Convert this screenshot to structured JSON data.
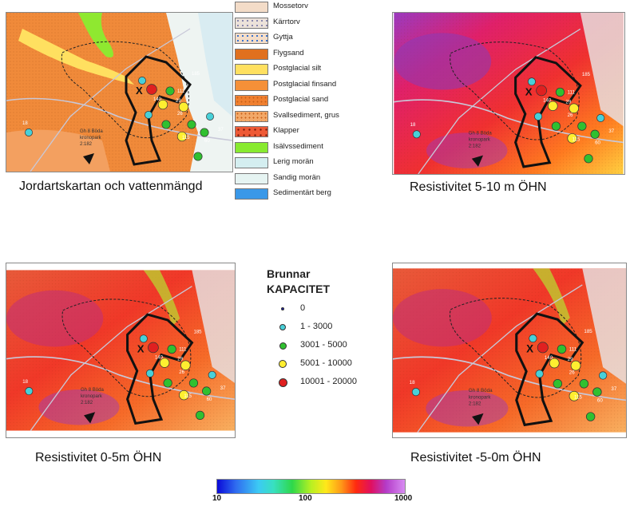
{
  "captions": {
    "top_left": "Jordartskartan och vattenmängd",
    "top_right": "Resistivitet 5-10 m ÖHN",
    "bottom_left": "Resistivitet 0-5m ÖHN",
    "bottom_right": "Resistivitet -5-0m ÖHN"
  },
  "soil_legend": [
    {
      "label": "Mossetorv",
      "color": "#f3dcc8"
    },
    {
      "label": "Kärrtorv",
      "color": "#ece2da"
    },
    {
      "label": "Gyttja",
      "color": "#f4ddc8"
    },
    {
      "label": "Flygsand",
      "color": "#e0701e"
    },
    {
      "label": "Postglacial silt",
      "color": "#ffe060"
    },
    {
      "label": "Postglacial finsand",
      "color": "#f59038"
    },
    {
      "label": "Postglacial sand",
      "color": "#f08030"
    },
    {
      "label": "Svallsediment, grus",
      "color": "#f2a868"
    },
    {
      "label": "Klapper",
      "color": "#ee5a36"
    },
    {
      "label": "Isälvssediment",
      "color": "#88ea30"
    },
    {
      "label": "Lerig morän",
      "color": "#d4eef0"
    },
    {
      "label": "Sandig morän",
      "color": "#e6f4f2"
    },
    {
      "label": "Sedimentärt berg",
      "color": "#3a98e8"
    }
  ],
  "wells_legend": {
    "title_line1": "Brunnar",
    "title_line2": "KAPACITET",
    "items": [
      {
        "label": "0",
        "color": "#1a1aa8",
        "size": 4
      },
      {
        "label": "1 - 3000",
        "color": "#48d0d8",
        "size": 8
      },
      {
        "label": "3001 - 5000",
        "color": "#30c030",
        "size": 9
      },
      {
        "label": "5001 - 10000",
        "color": "#ffee30",
        "size": 10
      },
      {
        "label": "10001 - 20000",
        "color": "#e02020",
        "size": 11
      }
    ]
  },
  "colorbar": {
    "min_label": "10",
    "mid_label": "100",
    "max_label": "1000"
  },
  "map_labels": {
    "marker": "X",
    "site_line1": "Gh 8 Böda",
    "site_line2": "kronopark",
    "site_line3": "2:182",
    "well_numbers": [
      "185",
      "140",
      "26",
      "37",
      "115",
      "60",
      "18",
      "29",
      "111"
    ]
  }
}
